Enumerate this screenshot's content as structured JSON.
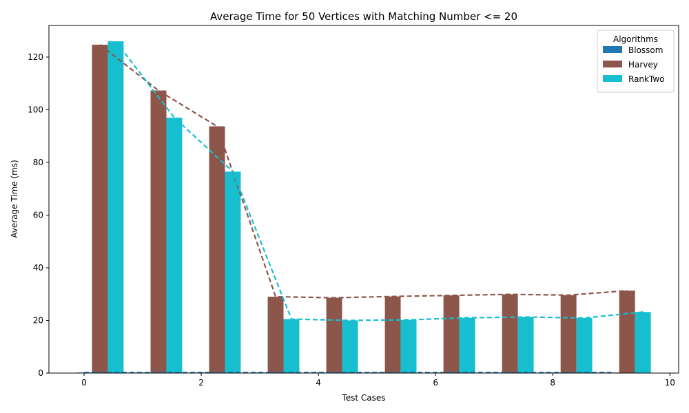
{
  "chart_data": {
    "type": "bar",
    "title": "Average Time for 50 Vertices with Matching Number <= 20",
    "xlabel": "Test Cases",
    "ylabel": "Average Time (ms)",
    "x": [
      0,
      1,
      2,
      3,
      4,
      5,
      6,
      7,
      8,
      9
    ],
    "xlim": [
      -0.6,
      10.15
    ],
    "ylim": [
      0,
      132
    ],
    "xticks": [
      "0",
      "2",
      "4",
      "6",
      "8",
      "10"
    ],
    "xtick_values": [
      0,
      2,
      4,
      6,
      8,
      10
    ],
    "yticks": [
      "0",
      "20",
      "40",
      "60",
      "80",
      "100",
      "120"
    ],
    "ytick_values": [
      0,
      20,
      40,
      60,
      80,
      100,
      120
    ],
    "bar_width": 0.27,
    "grid": false,
    "legend": {
      "title": "Algorithms",
      "placement": "top-right"
    },
    "series": [
      {
        "name": "Blossom",
        "color": "#1f77b4",
        "offset": 0.0,
        "values": [
          0.2,
          0.2,
          0.2,
          0.2,
          0.2,
          0.2,
          0.2,
          0.2,
          0.2,
          0.2
        ]
      },
      {
        "name": "Harvey",
        "color": "#8c564b",
        "offset": 0.27,
        "values": [
          124.7,
          107.3,
          93.7,
          29.0,
          28.6,
          29.1,
          29.5,
          29.9,
          29.6,
          31.3
        ]
      },
      {
        "name": "RankTwo",
        "color": "#17becf",
        "offset": 0.54,
        "values": [
          126.0,
          97.0,
          76.5,
          20.5,
          20.0,
          20.2,
          21.0,
          21.3,
          20.9,
          23.2
        ]
      }
    ]
  }
}
